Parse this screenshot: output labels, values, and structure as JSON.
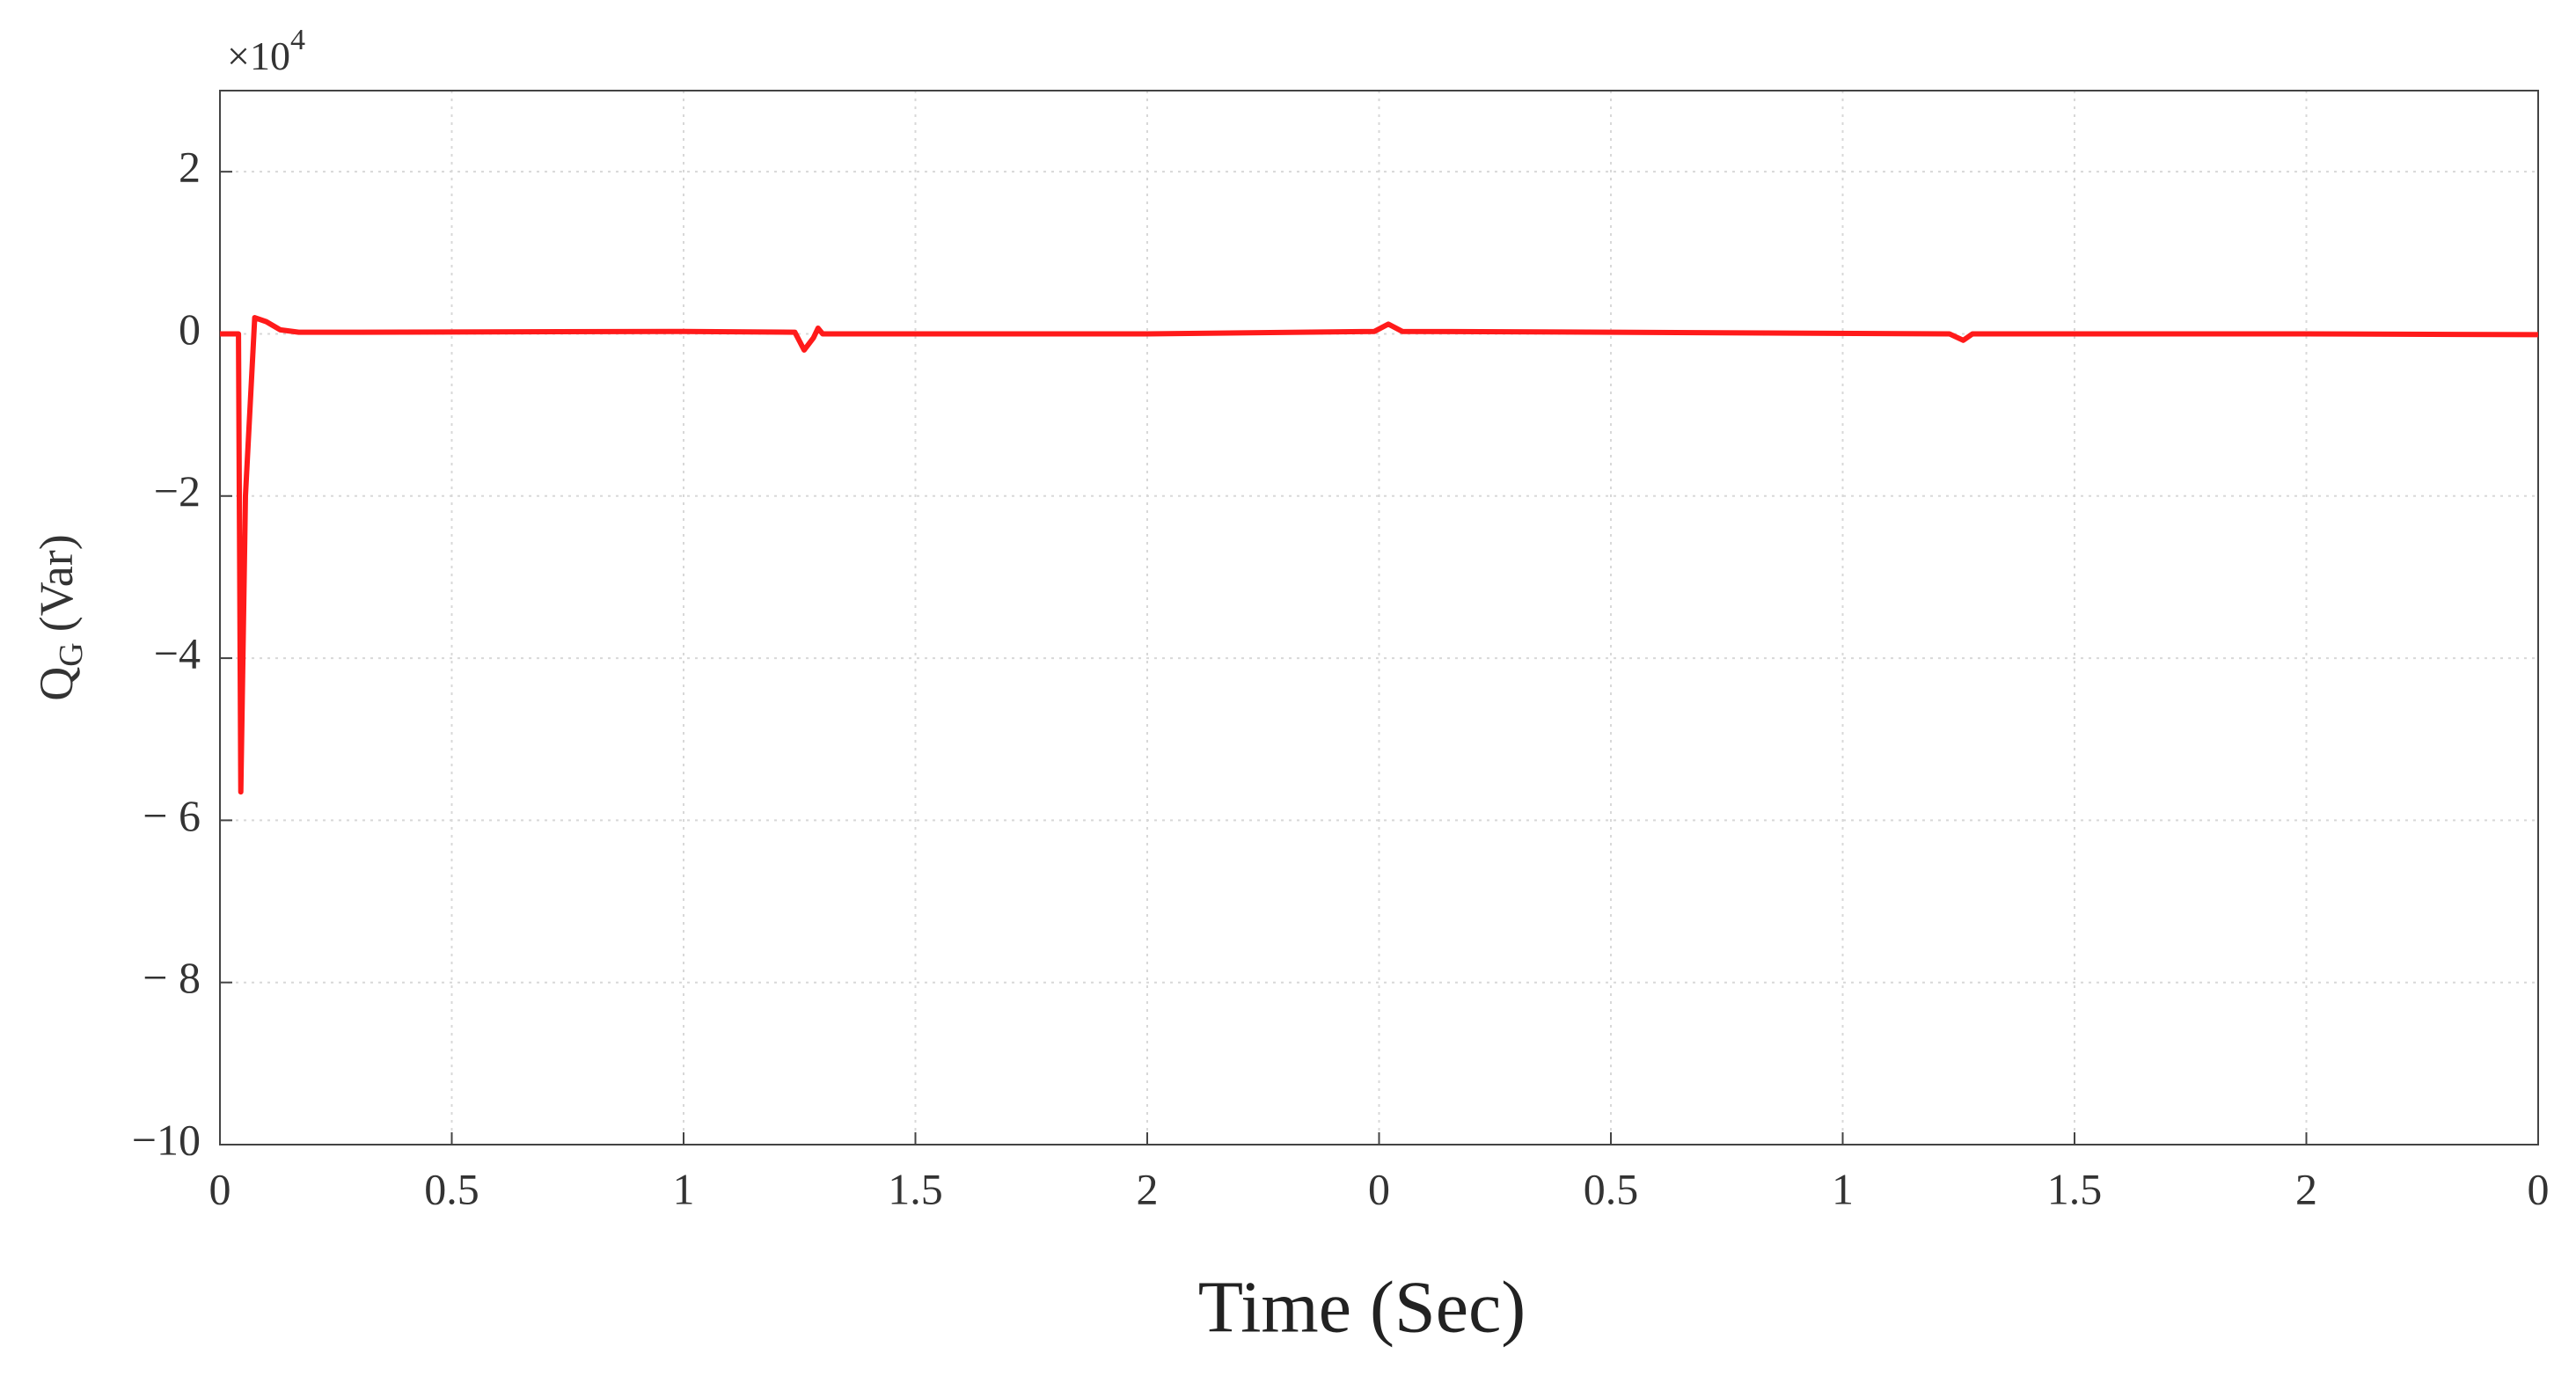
{
  "chart_data": {
    "type": "line",
    "y_multiplier": [
      "×10",
      "4"
    ],
    "xlabel": "Time (Sec)",
    "ylabel": [
      "Q",
      "G",
      "(Var)"
    ],
    "x": [
      0,
      0.04,
      0.045,
      0.055,
      0.075,
      0.1,
      0.13,
      0.17,
      0.3,
      1.0,
      1.24,
      1.26,
      1.28,
      1.29,
      1.3,
      2.0,
      2.49,
      2.52,
      2.55,
      3.0,
      3.73,
      3.76,
      3.78,
      4.5,
      5
    ],
    "values": [
      0,
      0,
      -5.65,
      -2,
      0.2,
      0.15,
      0.05,
      0.02,
      0.02,
      0.03,
      0.02,
      -0.2,
      -0.05,
      0.07,
      0.0,
      0.0,
      0.03,
      0.12,
      0.03,
      0.02,
      0.0,
      -0.08,
      0.0,
      0.0,
      -0.01
    ],
    "color": "#ff1a1a",
    "xlim": [
      0,
      5
    ],
    "xticks": [
      0,
      0.5,
      1,
      1.5,
      2,
      {
        "value": 2.5,
        "label": "0"
      },
      {
        "value": 3,
        "label": "0.5"
      },
      {
        "value": 3.5,
        "label": "1"
      },
      {
        "value": 4,
        "label": "1.5"
      },
      {
        "value": 4.5,
        "label": "2"
      },
      {
        "value": 5,
        "label": "0"
      }
    ],
    "ylim": [
      -10,
      3
    ],
    "yticks": [
      {
        "value": -10,
        "label": "−10"
      },
      {
        "value": -8,
        "label": "− 8"
      },
      {
        "value": -6,
        "label": "− 6"
      },
      {
        "value": -4,
        "label": "−4"
      },
      {
        "value": -2,
        "label": "−2"
      },
      0,
      2
    ],
    "grid": true
  }
}
